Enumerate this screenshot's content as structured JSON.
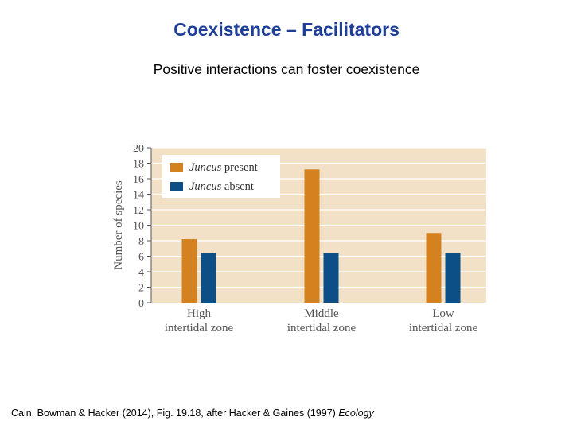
{
  "slide": {
    "title": "Coexistence – Facilitators",
    "subtitle": "Positive interactions can foster coexistence"
  },
  "citation": {
    "text": "Cain, Bowman & Hacker (2014), Fig. 19.18, after Hacker & Gaines (1997) ",
    "journal": "Ecology"
  },
  "chart_data": {
    "type": "bar",
    "title": "",
    "xlabel": "",
    "ylabel": "Number of species",
    "ylim": [
      0,
      20
    ],
    "yticks": [
      0,
      2,
      4,
      6,
      8,
      10,
      12,
      14,
      16,
      18,
      20
    ],
    "grid": true,
    "legend_position": "top-left",
    "categories": [
      {
        "line1": "High",
        "line2": "intertidal zone"
      },
      {
        "line1": "Middle",
        "line2": "intertidal zone"
      },
      {
        "line1": "Low",
        "line2": "intertidal zone"
      }
    ],
    "series": [
      {
        "name_italic": "Juncus",
        "name_rest": " present",
        "color": "#d4821f",
        "values": [
          8.2,
          17.2,
          9.0
        ]
      },
      {
        "name_italic": "Juncus",
        "name_rest": " absent",
        "color": "#0b4f86",
        "values": [
          6.4,
          6.4,
          6.4
        ]
      }
    ],
    "colors": {
      "plot_background": "#f3e1c7",
      "gridline": "#ffffff",
      "axis": "#555555",
      "text": "#555555"
    }
  }
}
